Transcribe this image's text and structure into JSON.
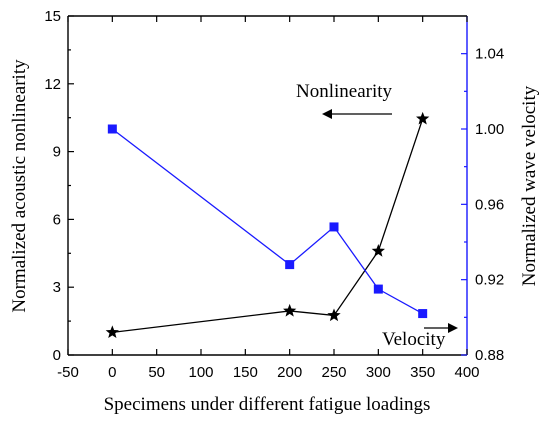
{
  "chart_data": {
    "type": "line",
    "title": "",
    "xlabel": "Specimens under different fatigue loadings",
    "ylabel_left": "Normalized acoustic nonlinearity",
    "ylabel_right": "Normalized wave velocity",
    "xlim": [
      -50,
      400
    ],
    "ylim_left": [
      0,
      15
    ],
    "ylim_right": [
      0.88,
      1.06
    ],
    "x_ticks": [
      "-50",
      "0",
      "50",
      "100",
      "150",
      "200",
      "250",
      "300",
      "350",
      "400"
    ],
    "y_ticks_left": [
      "0",
      "3",
      "6",
      "9",
      "12",
      "15"
    ],
    "y_ticks_right": [
      "0.88",
      "0.92",
      "0.96",
      "1.00",
      "1.04"
    ],
    "grid": false,
    "series": [
      {
        "axis": "left",
        "marker": "star",
        "color": "#000000",
        "x": [
          0,
          200,
          250,
          300,
          350
        ],
        "y": [
          1.0,
          1.95,
          1.75,
          4.6,
          10.45
        ]
      },
      {
        "axis": "right",
        "marker": "square",
        "color": "#1a1aff",
        "x": [
          0,
          200,
          250,
          300,
          350
        ],
        "y": [
          1.0,
          0.928,
          0.948,
          0.915,
          0.902
        ]
      }
    ],
    "annotations": [
      {
        "text": "Nonlinearity",
        "arrow": "left"
      },
      {
        "text": "Velocity",
        "arrow": "right"
      }
    ]
  },
  "colors": {
    "left_axis": "#000000",
    "right_axis": "#1a1aff"
  }
}
